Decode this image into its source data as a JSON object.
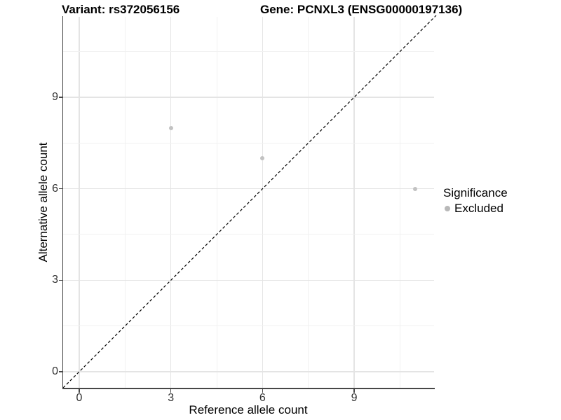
{
  "title_left": "Variant: rs372056156",
  "title_right": "Gene: PCNXL3 (ENSG00000197136)",
  "axes": {
    "x_label": "Reference allele count",
    "y_label": "Alternative allele count"
  },
  "legend": {
    "title": "Significance",
    "items": [
      {
        "label": "Excluded",
        "color": "#b8b8b8"
      }
    ]
  },
  "colors": {
    "point": "#c2c2c2",
    "axis_line": "#474747",
    "tick_label": "#303030",
    "grid_major": "#e4e4e4",
    "grid_minor": "#f1f1f1",
    "identity_line": "#000000",
    "background": "#ffffff"
  },
  "chart_data": {
    "type": "scatter",
    "title": "Variant: rs372056156 — Gene: PCNXL3 (ENSG00000197136)",
    "xlabel": "Reference allele count",
    "ylabel": "Alternative allele count",
    "x_ticks": [
      0,
      3,
      6,
      9
    ],
    "y_ticks": [
      0,
      3,
      6,
      9
    ],
    "xlim": [
      -0.55,
      11.6
    ],
    "ylim": [
      -0.55,
      11.65
    ],
    "grid": true,
    "legend_position": "right",
    "series": [
      {
        "name": "Excluded",
        "color": "#c2c2c2",
        "points": [
          [
            3,
            8
          ],
          [
            6,
            7
          ],
          [
            11,
            6
          ]
        ]
      }
    ],
    "reference_line": {
      "type": "identity",
      "equation": "y = x",
      "style": "dashed",
      "color": "#000000"
    }
  }
}
